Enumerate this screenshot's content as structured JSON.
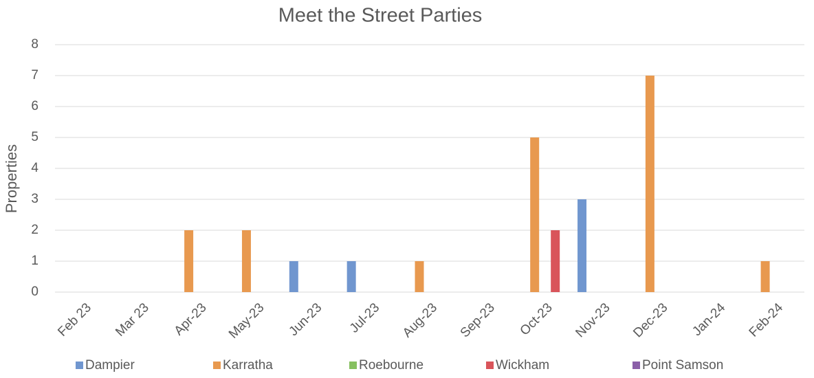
{
  "chart_data": {
    "type": "bar",
    "title": "Meet the Street Parties",
    "y_label": "Properties",
    "categories": [
      "Feb 23",
      "Mar 23",
      "Apr-23",
      "May-23",
      "Jun-23",
      "Jul-23",
      "Aug-23",
      "Sep-23",
      "Oct-23",
      "Nov-23",
      "Dec-23",
      "Jan-24",
      "Feb-24"
    ],
    "series": [
      {
        "name": "Dampier",
        "color": "#7096cf",
        "values": [
          0,
          0,
          0,
          0,
          1,
          1,
          0,
          0,
          0,
          3,
          0,
          0,
          0
        ]
      },
      {
        "name": "Karratha",
        "color": "#e8994f",
        "values": [
          0,
          0,
          2,
          2,
          0,
          0,
          1,
          0,
          5,
          0,
          7,
          0,
          1
        ]
      },
      {
        "name": "Roebourne",
        "color": "#86c060",
        "values": [
          0,
          0,
          0,
          0,
          0,
          0,
          0,
          0,
          0,
          0,
          0,
          0,
          0
        ]
      },
      {
        "name": "Wickham",
        "color": "#d9545a",
        "values": [
          0,
          0,
          0,
          0,
          0,
          0,
          0,
          0,
          2,
          0,
          0,
          0,
          0
        ]
      },
      {
        "name": "Point Samson",
        "color": "#8b5fa8",
        "values": [
          0,
          0,
          0,
          0,
          0,
          0,
          0,
          0,
          0,
          0,
          0,
          0,
          0
        ]
      }
    ],
    "ylim": [
      0,
      8
    ],
    "yticks": [
      0,
      1,
      2,
      3,
      4,
      5,
      6,
      7,
      8
    ],
    "grid": true,
    "legend": "bottom"
  }
}
